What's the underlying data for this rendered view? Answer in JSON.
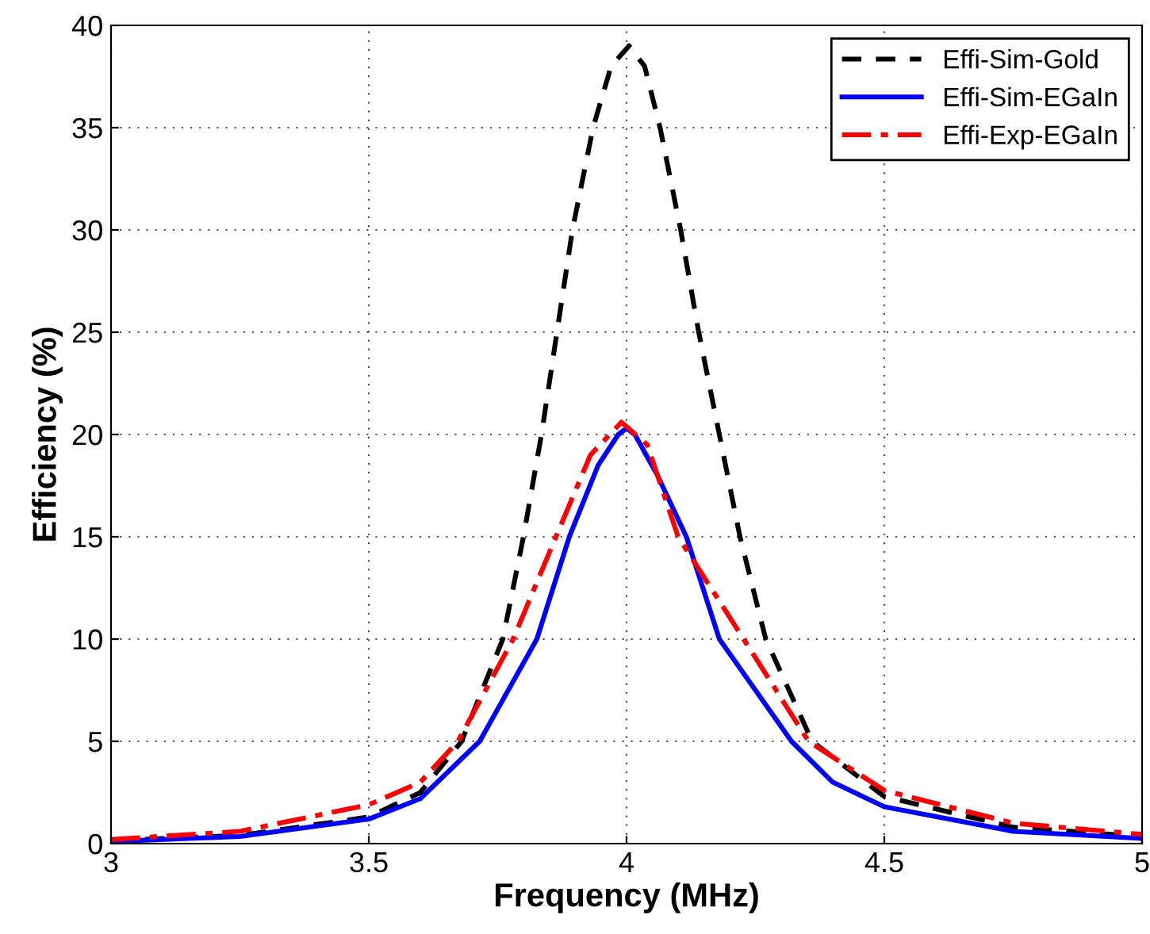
{
  "chart_data": {
    "type": "line",
    "xlabel": "Frequency (MHz)",
    "ylabel": "Efficiency (%)",
    "xlim": [
      3,
      5
    ],
    "ylim": [
      0,
      40
    ],
    "xticks": [
      3,
      3.5,
      4,
      4.5,
      5
    ],
    "yticks": [
      0,
      5,
      10,
      15,
      20,
      25,
      30,
      35,
      40
    ],
    "grid": true,
    "legend": "top right",
    "series": [
      {
        "name": "Effi-Sim-Gold",
        "color": "#000000",
        "line_style": "dashed",
        "x": [
          3.0,
          3.25,
          3.5,
          3.6,
          3.68,
          3.76,
          3.8,
          3.835,
          3.865,
          3.895,
          3.935,
          3.97,
          4.005,
          4.035,
          4.065,
          4.105,
          4.14,
          4.18,
          4.22,
          4.27,
          4.36,
          4.5,
          4.75,
          5.0
        ],
        "values": [
          0.15,
          0.4,
          1.3,
          2.5,
          5,
          10,
          15,
          20,
          25,
          30,
          35,
          38,
          39,
          38,
          35,
          30,
          25,
          20,
          15,
          10,
          5,
          2.3,
          0.8,
          0.35
        ]
      },
      {
        "name": "Effi-Sim-EGaIn",
        "color": "#0000ff",
        "line_style": "solid",
        "x": [
          3.0,
          3.25,
          3.5,
          3.6,
          3.715,
          3.826,
          3.889,
          3.945,
          3.984,
          4.0,
          4.016,
          4.06,
          4.116,
          4.18,
          4.32,
          4.4,
          4.5,
          4.75,
          5.0
        ],
        "values": [
          0.1,
          0.35,
          1.2,
          2.2,
          5,
          10,
          15,
          18.5,
          20,
          20.3,
          20,
          18,
          15,
          10,
          5,
          3,
          1.8,
          0.6,
          0.25
        ]
      },
      {
        "name": "Effi-Exp-EGaIn",
        "color": "#ff0000",
        "line_style": "dashdot",
        "x": [
          3.0,
          3.25,
          3.5,
          3.6,
          3.673,
          3.78,
          3.863,
          3.93,
          3.99,
          4.04,
          4.1,
          4.227,
          4.353,
          4.5,
          4.75,
          5.0
        ],
        "values": [
          0.2,
          0.6,
          1.9,
          3,
          5,
          10,
          15,
          19,
          20.6,
          19.5,
          15,
          10,
          5,
          2.6,
          1.0,
          0.45
        ]
      }
    ]
  }
}
